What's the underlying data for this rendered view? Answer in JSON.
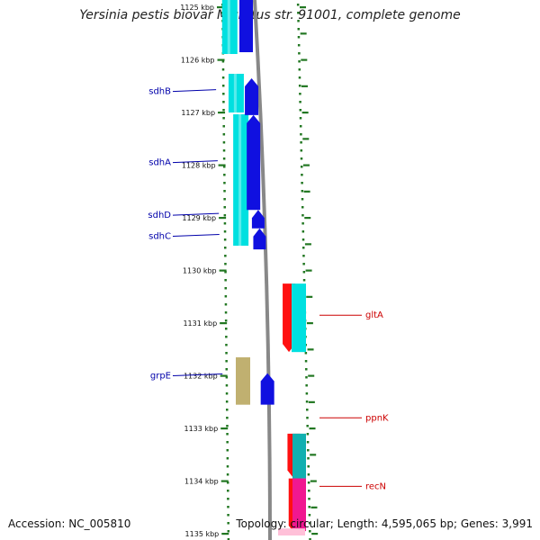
{
  "title": "Yersinia pestis biovar Microtus str. 91001, complete genome",
  "accession": "Accession: NC_005810",
  "summary": "Topology: circular; Length: 4,595,065 bp; Genes: 3,991",
  "colors": {
    "cyan": "#00e0e0",
    "blue": "#1010e0",
    "red": "#ff1010",
    "teal": "#10b0b0",
    "magenta": "#f01890",
    "pink": "#ffc0d8",
    "olive": "#c0b070",
    "label_blue": "#0000aa",
    "label_red": "#cc0000",
    "tick_green": "#227722",
    "backbone": "#888888"
  },
  "map": {
    "kbp_start": 1125,
    "kbp_end": 1135,
    "ticks": [
      "1125 kbp",
      "1126 kbp",
      "1127 kbp",
      "1128 kbp",
      "1129 kbp",
      "1130 kbp",
      "1131 kbp",
      "1132 kbp",
      "1133 kbp",
      "1134 kbp",
      "1135 kbp"
    ]
  },
  "genes": [
    {
      "name": "sdhB",
      "strand": "+",
      "start_kbp": 1126.35,
      "end_kbp": 1127.05,
      "color": "blue"
    },
    {
      "name": "sdhA",
      "strand": "+",
      "start_kbp": 1127.05,
      "end_kbp": 1128.85,
      "color": "blue"
    },
    {
      "name": "sdhD",
      "strand": "+",
      "start_kbp": 1128.85,
      "end_kbp": 1129.2,
      "color": "blue"
    },
    {
      "name": "sdhC",
      "strand": "+",
      "start_kbp": 1129.2,
      "end_kbp": 1129.6,
      "color": "blue"
    },
    {
      "name": "gltA",
      "strand": "-",
      "start_kbp": 1130.25,
      "end_kbp": 1131.55,
      "color": "red"
    },
    {
      "name": "grpE",
      "strand": "+",
      "start_kbp": 1131.95,
      "end_kbp": 1132.55,
      "color": "blue"
    },
    {
      "name": "ppnK",
      "strand": "-",
      "start_kbp": 1133.1,
      "end_kbp": 1133.95,
      "color": "red"
    },
    {
      "name": "recN",
      "strand": "-",
      "start_kbp": 1133.95,
      "end_kbp": 1135.0,
      "color": "red"
    }
  ],
  "labels": [
    {
      "text": "sdhB",
      "side": "left",
      "color": "label_blue",
      "kbp": 1126.6
    },
    {
      "text": "sdhA",
      "side": "left",
      "color": "label_blue",
      "kbp": 1127.95
    },
    {
      "text": "sdhD",
      "side": "left",
      "color": "label_blue",
      "kbp": 1128.95
    },
    {
      "text": "sdhC",
      "side": "left",
      "color": "label_blue",
      "kbp": 1129.35
    },
    {
      "text": "grpE",
      "side": "left",
      "color": "label_blue",
      "kbp": 1132.0
    },
    {
      "text": "gltA",
      "side": "right",
      "color": "label_red",
      "kbp": 1130.85
    },
    {
      "text": "ppnK",
      "side": "right",
      "color": "label_red",
      "kbp": 1132.8
    },
    {
      "text": "recN",
      "side": "right",
      "color": "label_red",
      "kbp": 1134.1
    }
  ]
}
